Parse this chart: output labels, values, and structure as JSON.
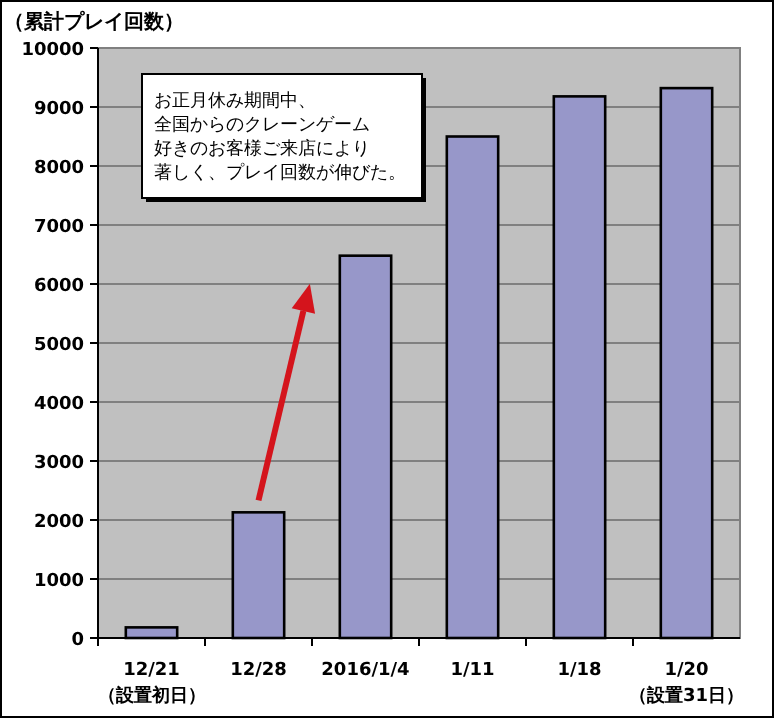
{
  "chart_data": {
    "type": "bar",
    "ylabel": "（累計プレイ回数）",
    "categories": [
      "12/21\n（設置初日）",
      "12/28",
      "2016/1/4",
      "1/11",
      "1/18",
      "1/20\n（設置31日）"
    ],
    "values": [
      180,
      2130,
      6480,
      8500,
      9180,
      9320
    ],
    "color": "#9797c9",
    "ylim": [
      0,
      10000
    ],
    "yticks": [
      0,
      1000,
      2000,
      3000,
      4000,
      5000,
      6000,
      7000,
      8000,
      9000,
      10000
    ],
    "grid": "y",
    "annotations": [
      "お正月休み期間中、",
      "全国からのクレーンゲーム",
      "好きのお客様ご来店により",
      "著しく、プレイ回数が伸びた。"
    ]
  }
}
